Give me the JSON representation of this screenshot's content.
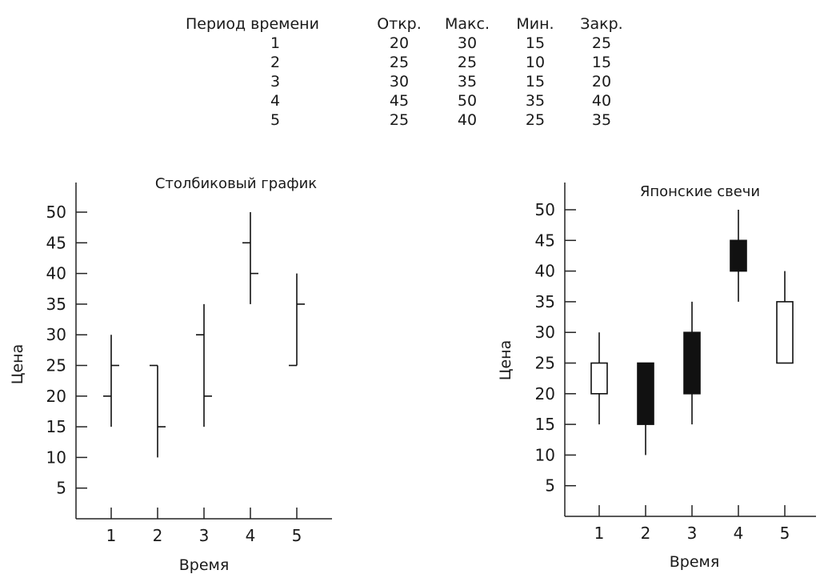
{
  "table": {
    "headers": [
      "Период времени",
      "Откр.",
      "Макс.",
      "Мин.",
      "Закр."
    ],
    "rows": [
      [
        "1",
        "20",
        "30",
        "15",
        "25"
      ],
      [
        "2",
        "25",
        "25",
        "10",
        "15"
      ],
      [
        "3",
        "30",
        "35",
        "15",
        "20"
      ],
      [
        "4",
        "45",
        "50",
        "35",
        "40"
      ],
      [
        "5",
        "25",
        "40",
        "25",
        "35"
      ]
    ]
  },
  "chart_data": [
    {
      "type": "ohlc-bar",
      "title": "Столбиковый график",
      "xlabel": "Время",
      "ylabel": "Цена",
      "x": [
        1,
        2,
        3,
        4,
        5
      ],
      "open": [
        20,
        25,
        30,
        45,
        25
      ],
      "high": [
        30,
        25,
        35,
        50,
        40
      ],
      "low": [
        15,
        10,
        15,
        35,
        25
      ],
      "close": [
        25,
        15,
        20,
        40,
        35
      ],
      "yticks": [
        5,
        10,
        15,
        20,
        25,
        30,
        35,
        40,
        45,
        50
      ],
      "xticks": [
        1,
        2,
        3,
        4,
        5
      ],
      "ylim": [
        0,
        55
      ],
      "grid": false
    },
    {
      "type": "candlestick",
      "title": "Японские свечи",
      "xlabel": "Время",
      "ylabel": "Цена",
      "x": [
        1,
        2,
        3,
        4,
        5
      ],
      "open": [
        20,
        25,
        30,
        45,
        25
      ],
      "high": [
        30,
        25,
        35,
        50,
        40
      ],
      "low": [
        15,
        10,
        15,
        35,
        25
      ],
      "close": [
        25,
        15,
        20,
        40,
        35
      ],
      "yticks": [
        5,
        10,
        15,
        20,
        25,
        30,
        35,
        40,
        45,
        50
      ],
      "xticks": [
        1,
        2,
        3,
        4,
        5
      ],
      "ylim": [
        0,
        55
      ],
      "grid": false,
      "colors": {
        "up": "#ffffff",
        "down": "#111111",
        "stroke": "#111111"
      }
    }
  ]
}
